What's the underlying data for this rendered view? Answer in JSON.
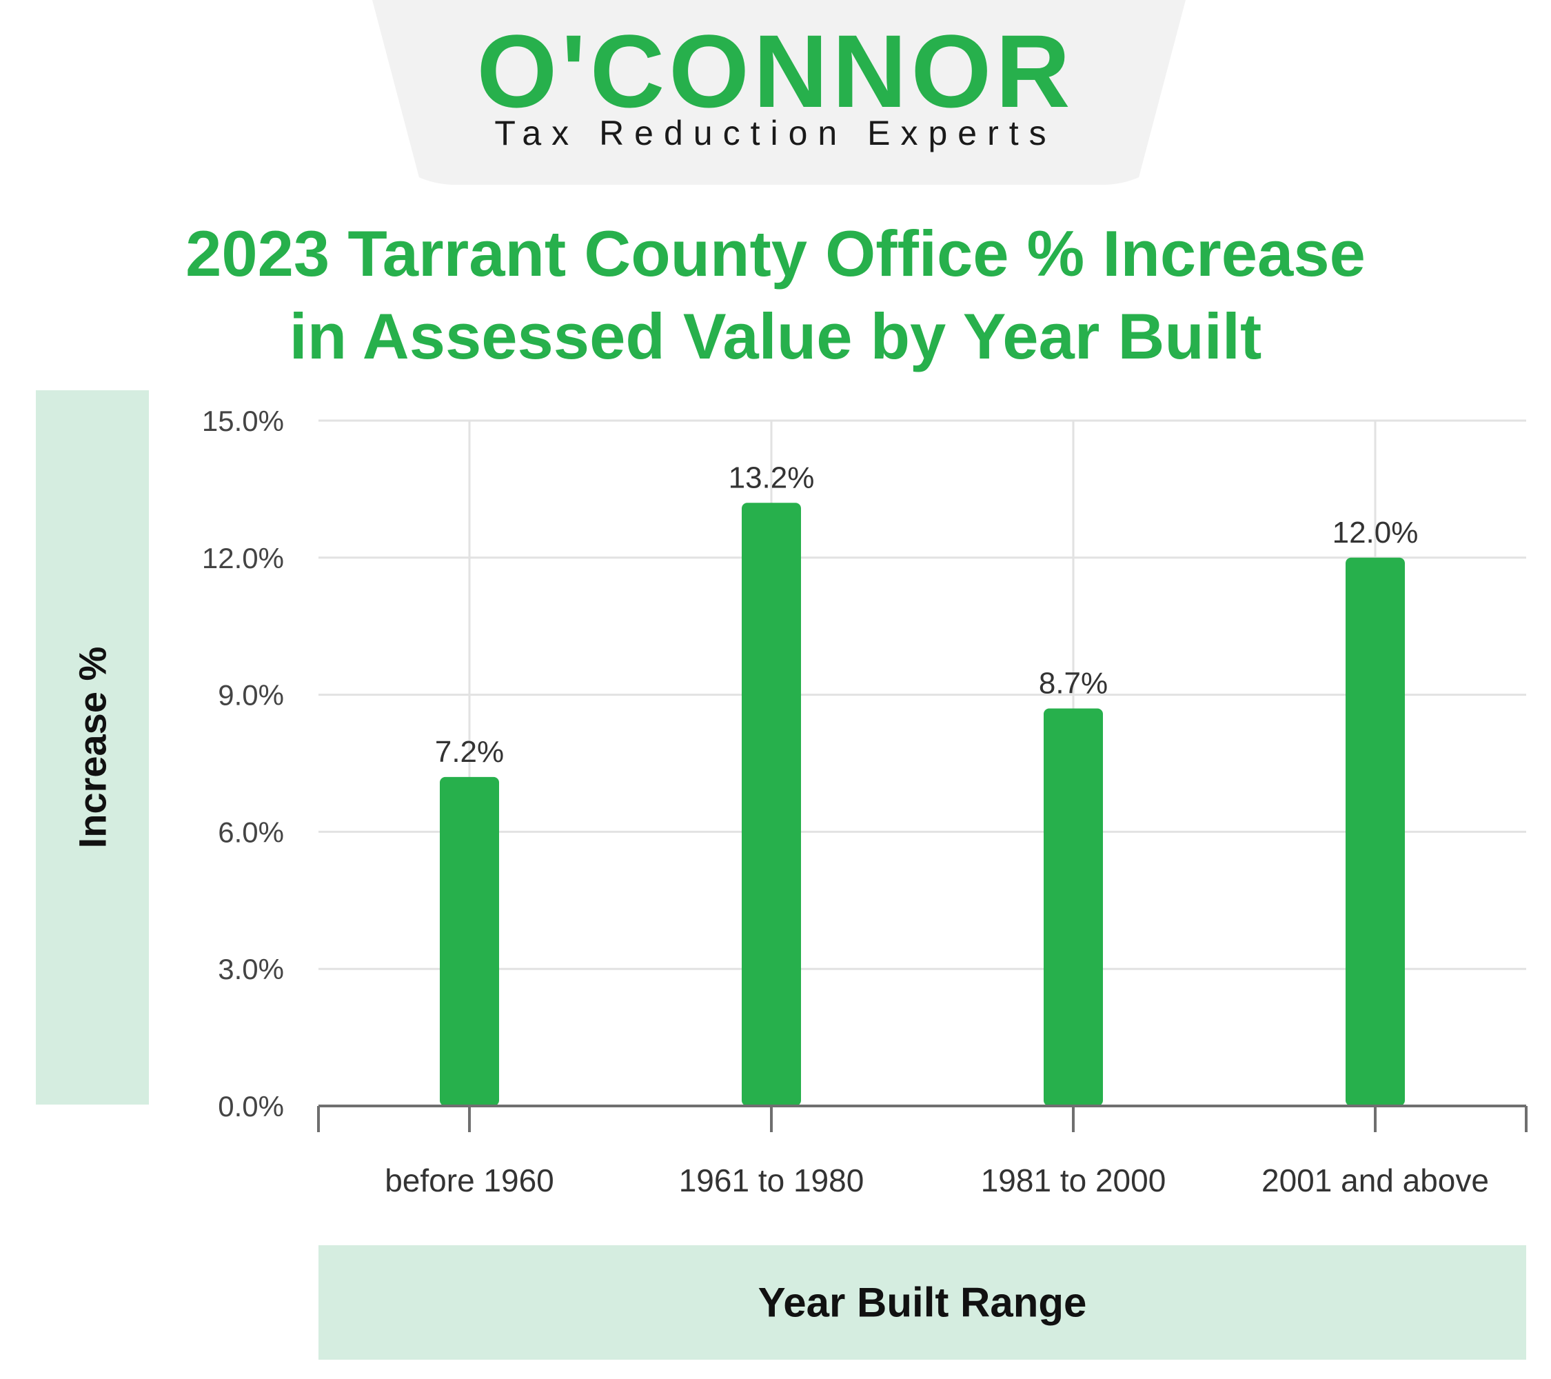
{
  "brand": {
    "name": "O'CONNOR",
    "tagline": "Tax Reduction Experts",
    "color": "#27b04c"
  },
  "chart_data": {
    "type": "bar",
    "title": [
      "2023 Tarrant County Office % Increase",
      "in Assessed Value by Year Built"
    ],
    "xlabel": "Year Built Range",
    "ylabel": "Increase %",
    "categories": [
      "before 1960",
      "1961 to 1980",
      "1981 to 2000",
      "2001 and above"
    ],
    "values": [
      7.2,
      13.2,
      8.7,
      12.0
    ],
    "data_labels": [
      "7.2%",
      "13.2%",
      "8.7%",
      "12.0%"
    ],
    "ylim": [
      0,
      15
    ],
    "yticks": [
      0,
      3,
      6,
      9,
      12,
      15
    ],
    "ytick_labels": [
      "0.0%",
      "3.0%",
      "6.0%",
      "9.0%",
      "12.0%",
      "15.0%"
    ],
    "grid": true,
    "legend": "none",
    "bar_color": "#27b04c"
  }
}
